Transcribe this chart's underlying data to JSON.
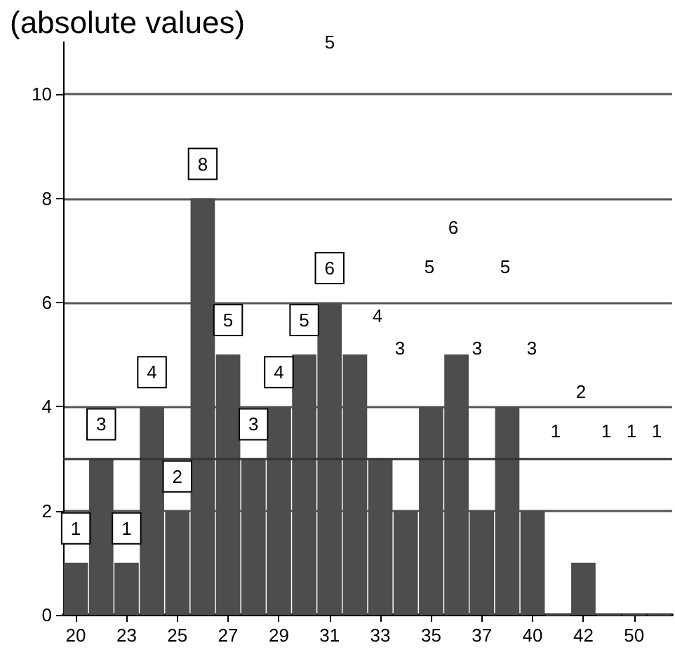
{
  "chart_data": {
    "type": "bar",
    "title": "(absolute values)",
    "categories": [
      "20",
      null,
      "23",
      null,
      "25",
      null,
      "27",
      null,
      "29",
      null,
      "31",
      null,
      "33",
      null,
      "35",
      null,
      "37",
      null,
      "40",
      null,
      "42",
      null,
      "50",
      null
    ],
    "values": [
      1,
      3,
      1,
      4,
      2,
      8,
      5,
      3,
      4,
      5,
      6,
      5,
      3,
      2,
      4,
      5,
      2,
      4,
      2,
      0,
      1,
      0,
      0,
      0
    ],
    "value_labels": [
      "1",
      "3",
      "1",
      "4",
      "2",
      "8",
      "5",
      "3",
      "4",
      "5",
      "6",
      null,
      null,
      null,
      null,
      null,
      null,
      null,
      null,
      null,
      null,
      null,
      null,
      null
    ],
    "annotations": [
      "5",
      "4",
      "3",
      "5",
      "6",
      "3",
      "5",
      "3",
      "1",
      "2",
      "1",
      "1",
      "1"
    ],
    "color": "#4d4d4d",
    "ylim": [
      0,
      11
    ],
    "yticks": [
      0,
      2,
      4,
      6,
      8,
      10
    ],
    "grid": "y",
    "ref_lines": [
      {
        "axis": "y",
        "value": 3,
        "color": "#333333"
      }
    ]
  }
}
